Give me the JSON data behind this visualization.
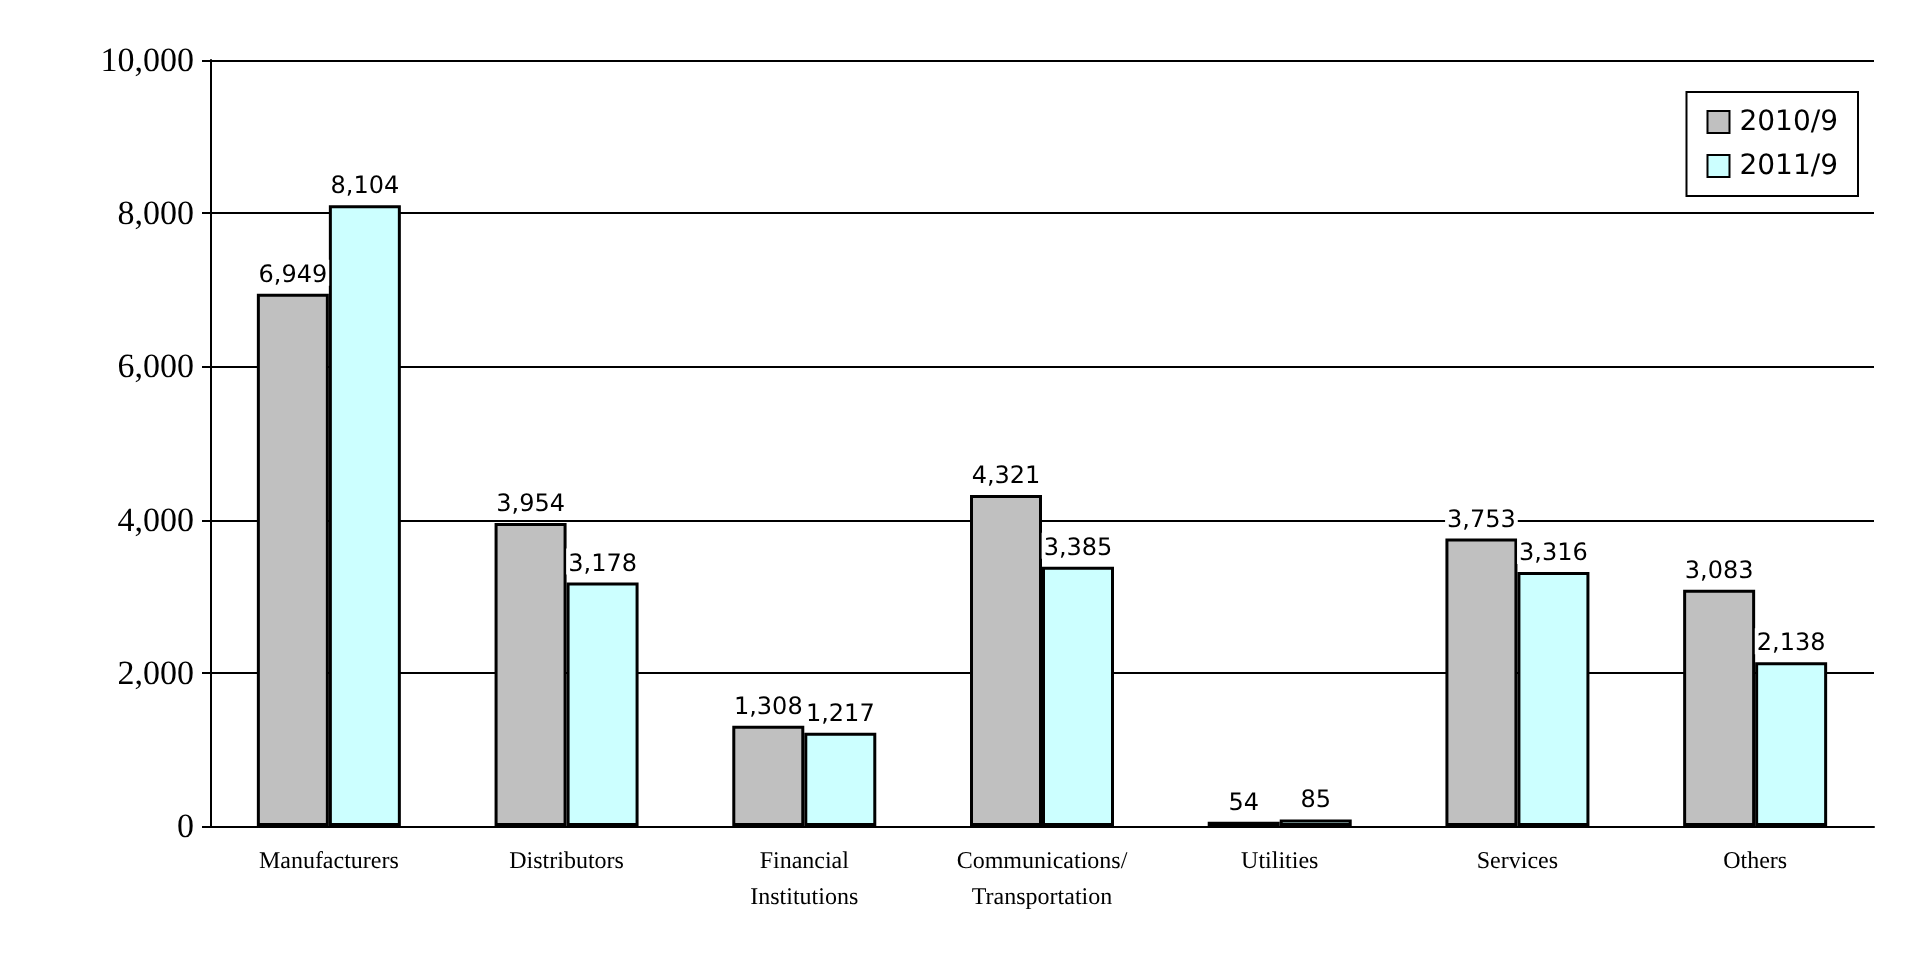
{
  "chart_data": {
    "type": "bar",
    "categories": [
      "Manufacturers",
      "Distributors",
      "Financial\nInstitutions",
      "Communications/\nTransportation",
      "Utilities",
      "Services",
      "Others"
    ],
    "series": [
      {
        "name": "2010/9",
        "color": "#c0c0c0",
        "values": [
          6949,
          3954,
          1308,
          4321,
          54,
          3753,
          3083
        ],
        "value_labels": [
          "6,949",
          "3,954",
          "1,308",
          "4,321",
          "54",
          "3,753",
          "3,083"
        ]
      },
      {
        "name": "2011/9",
        "color": "#ccffff",
        "values": [
          8104,
          3178,
          1217,
          3385,
          85,
          3316,
          2138
        ],
        "value_labels": [
          "8,104",
          "3,178",
          "1,217",
          "3,385",
          "85",
          "3,316",
          "2,138"
        ]
      }
    ],
    "ylim": [
      0,
      10000
    ],
    "yticks": [
      {
        "value": 0,
        "label": "0"
      },
      {
        "value": 2000,
        "label": "2,000"
      },
      {
        "value": 4000,
        "label": "4,000"
      },
      {
        "value": 6000,
        "label": "6,000"
      },
      {
        "value": 8000,
        "label": "8,000"
      },
      {
        "value": 10000,
        "label": "10,000"
      }
    ],
    "grid": "y",
    "legend": "top right"
  }
}
